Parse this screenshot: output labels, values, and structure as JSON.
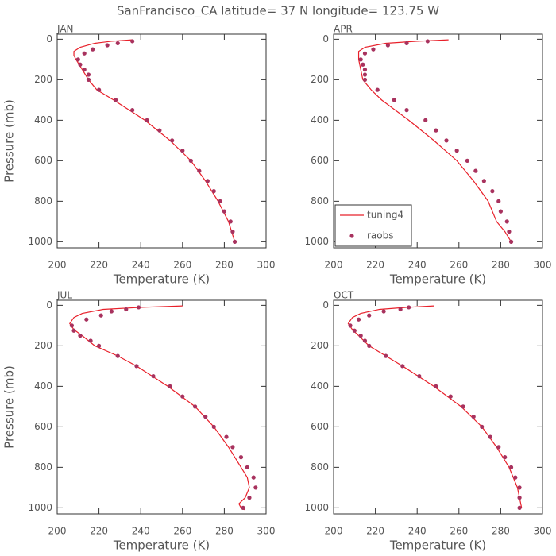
{
  "title": "SanFrancisco_CA  latitude= 37 N longitude= 123.75 W",
  "chart_data": [
    {
      "type": "line",
      "label": "JAN",
      "xlabel": "Temperature (K)",
      "ylabel": "Pressure (mb)",
      "xlim": [
        200,
        300
      ],
      "ylim": [
        1030,
        -25
      ],
      "xticks": [
        200,
        220,
        240,
        260,
        280,
        300
      ],
      "yticks": [
        0,
        200,
        400,
        600,
        800,
        1000
      ],
      "series": [
        {
          "color": "#e8202a",
          "style": "line",
          "x": [
            236,
            226,
            218,
            211,
            208,
            208,
            209,
            212,
            215,
            219,
            227,
            242,
            254,
            264,
            271,
            277,
            282,
            285
          ],
          "y": [
            3,
            10,
            20,
            40,
            60,
            80,
            100,
            150,
            200,
            250,
            300,
            400,
            500,
            600,
            700,
            800,
            900,
            1000
          ]
        },
        {
          "color": "#a8325e",
          "style": "points",
          "x": [
            236,
            229,
            224,
            217,
            213,
            210,
            211,
            213,
            215,
            215,
            220,
            228,
            236,
            243,
            249,
            255,
            260,
            264,
            268,
            272,
            275,
            278,
            280,
            283,
            284,
            285
          ],
          "y": [
            10,
            20,
            30,
            50,
            70,
            100,
            125,
            150,
            175,
            200,
            250,
            300,
            350,
            400,
            450,
            500,
            550,
            600,
            650,
            700,
            750,
            800,
            850,
            900,
            950,
            1000
          ]
        }
      ]
    },
    {
      "type": "line",
      "label": "APR",
      "xlabel": "Temperature (K)",
      "legend": "lower left",
      "xlim": [
        200,
        300
      ],
      "ylim": [
        1030,
        -25
      ],
      "xticks": [
        200,
        220,
        240,
        260,
        280,
        300
      ],
      "yticks": [
        0,
        200,
        400,
        600,
        800,
        1000
      ],
      "series": [
        {
          "name": "tuning4",
          "color": "#e8202a",
          "style": "line",
          "x": [
            255,
            240,
            225,
            215,
            212,
            212,
            212,
            213,
            214,
            218,
            223,
            236,
            248,
            259,
            267,
            274,
            278,
            282,
            285
          ],
          "y": [
            3,
            10,
            20,
            40,
            60,
            80,
            100,
            150,
            200,
            250,
            300,
            400,
            500,
            600,
            700,
            800,
            900,
            950,
            1000
          ]
        },
        {
          "name": "raobs",
          "color": "#a8325e",
          "style": "points",
          "x": [
            245,
            235,
            226,
            219,
            215,
            213,
            214,
            215,
            215,
            215,
            221,
            229,
            235,
            244,
            249,
            254,
            259,
            264,
            268,
            272,
            276,
            279,
            280,
            283,
            284,
            285
          ],
          "y": [
            10,
            20,
            30,
            50,
            70,
            100,
            125,
            150,
            175,
            200,
            250,
            300,
            350,
            400,
            450,
            500,
            550,
            600,
            650,
            700,
            750,
            800,
            850,
            900,
            950,
            1000
          ]
        }
      ]
    },
    {
      "type": "line",
      "label": "JUL",
      "xlabel": "Temperature (K)",
      "ylabel": "Pressure (mb)",
      "xlim": [
        200,
        300
      ],
      "ylim": [
        1030,
        -25
      ],
      "xticks": [
        200,
        220,
        240,
        260,
        280,
        300
      ],
      "yticks": [
        0,
        200,
        400,
        600,
        800,
        1000
      ],
      "series": [
        {
          "color": "#e8202a",
          "style": "line",
          "x": [
            260,
            240,
            222,
            212,
            208,
            206,
            208,
            212,
            218,
            229,
            238,
            253,
            266,
            275,
            282,
            288,
            291,
            292,
            290,
            287,
            288,
            290
          ],
          "y": [
            3,
            10,
            20,
            40,
            60,
            90,
            120,
            150,
            200,
            250,
            300,
            400,
            500,
            600,
            700,
            800,
            850,
            900,
            950,
            980,
            1000,
            1010
          ]
        },
        {
          "color": "#a8325e",
          "style": "points",
          "x": [
            239,
            233,
            226,
            221,
            214,
            207,
            208,
            211,
            216,
            220,
            229,
            238,
            246,
            254,
            260,
            266,
            271,
            275,
            281,
            284,
            288,
            291,
            294,
            295,
            292,
            289
          ],
          "y": [
            10,
            20,
            30,
            50,
            70,
            100,
            125,
            150,
            175,
            200,
            250,
            300,
            350,
            400,
            450,
            500,
            550,
            600,
            650,
            700,
            750,
            800,
            850,
            900,
            950,
            1000
          ]
        }
      ]
    },
    {
      "type": "line",
      "label": "OCT",
      "xlabel": "Temperature (K)",
      "xlim": [
        200,
        300
      ],
      "ylim": [
        1030,
        -25
      ],
      "xticks": [
        200,
        220,
        240,
        260,
        280,
        300
      ],
      "yticks": [
        0,
        200,
        400,
        600,
        800,
        1000
      ],
      "series": [
        {
          "color": "#e8202a",
          "style": "line",
          "x": [
            248,
            235,
            222,
            213,
            209,
            207,
            209,
            212,
            217,
            225,
            233,
            248,
            261,
            271,
            278,
            284,
            288,
            290
          ],
          "y": [
            3,
            10,
            20,
            40,
            60,
            90,
            120,
            150,
            200,
            250,
            300,
            400,
            500,
            600,
            700,
            800,
            900,
            1000
          ]
        },
        {
          "color": "#a8325e",
          "style": "points",
          "x": [
            236,
            232,
            224,
            217,
            212,
            208,
            210,
            213,
            215,
            217,
            225,
            233,
            241,
            249,
            256,
            262,
            267,
            271,
            275,
            279,
            282,
            285,
            287,
            289,
            289,
            289
          ],
          "y": [
            10,
            20,
            30,
            50,
            70,
            100,
            125,
            150,
            175,
            200,
            250,
            300,
            350,
            400,
            450,
            500,
            550,
            600,
            650,
            700,
            750,
            800,
            850,
            900,
            950,
            1000
          ]
        }
      ]
    }
  ]
}
